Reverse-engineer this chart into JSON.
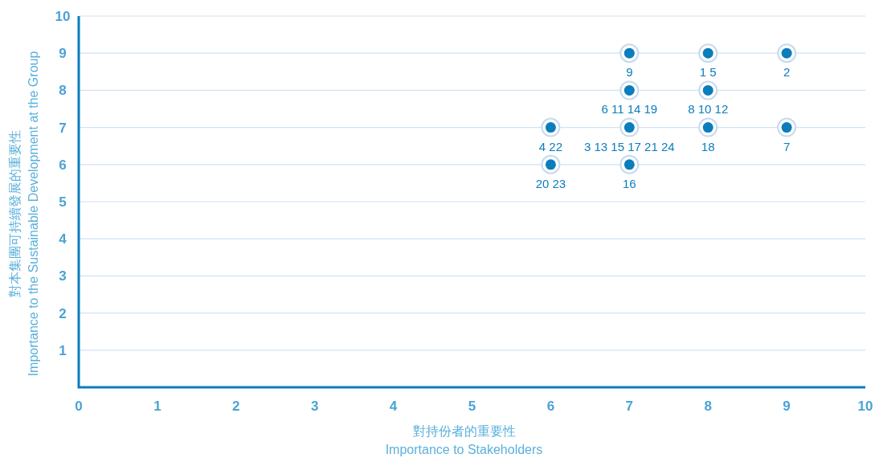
{
  "chart_data": {
    "type": "scatter",
    "xlabel": "對持份者的重要性\nImportance to Stakeholders",
    "ylabel": "對本集團可持續發展的重要性\nImportance to the Sustainable Development at the Group",
    "color": "#0b7dbd",
    "marker": "circle",
    "grid": "y",
    "x": [
      7,
      8,
      9,
      6,
      7,
      8,
      9,
      6,
      7,
      8,
      7
    ],
    "values": [
      9,
      9,
      9,
      7,
      8,
      8,
      7,
      6,
      7,
      7,
      6
    ],
    "annotations": [
      {
        "text": "9",
        "x": 7,
        "y": 9
      },
      {
        "text": "1 5",
        "x": 8,
        "y": 9
      },
      {
        "text": "2",
        "x": 9,
        "y": 9
      },
      {
        "text": "4 22",
        "x": 6,
        "y": 7
      },
      {
        "text": "6 11 14 19",
        "x": 7,
        "y": 8
      },
      {
        "text": "8 10 12",
        "x": 8,
        "y": 8
      },
      {
        "text": "7",
        "x": 9,
        "y": 7
      },
      {
        "text": "20 23",
        "x": 6,
        "y": 6
      },
      {
        "text": "3 13 15 17 21 24",
        "x": 7,
        "y": 7
      },
      {
        "text": "18",
        "x": 8,
        "y": 7
      },
      {
        "text": "16",
        "x": 7,
        "y": 6
      }
    ],
    "xlim": [
      0,
      10
    ],
    "ylim": [
      0,
      10
    ],
    "xticks": [
      0,
      1,
      2,
      3,
      4,
      5,
      6,
      7,
      8,
      9,
      10
    ],
    "yticks": [
      1,
      2,
      3,
      4,
      5,
      6,
      7,
      8,
      9,
      10
    ]
  }
}
